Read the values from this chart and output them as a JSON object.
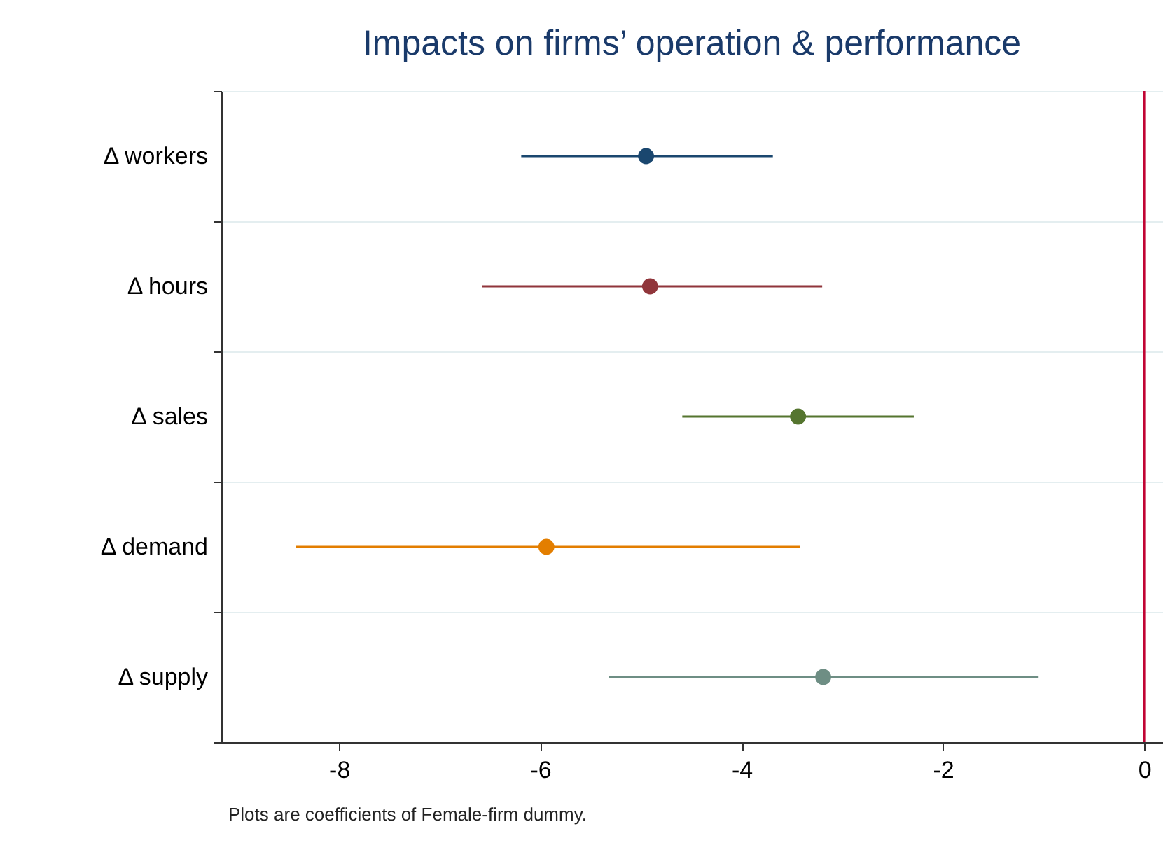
{
  "chart_data": {
    "type": "scatter",
    "title": "Impacts on firms’ operation & performance",
    "categories": [
      "Δ workers",
      "Δ hours",
      "Δ sales",
      "Δ demand",
      "Δ supply"
    ],
    "values": [
      -4.95,
      -4.91,
      -3.44,
      -5.94,
      -3.19
    ],
    "errors": [
      [
        -6.19,
        -3.69
      ],
      [
        -6.58,
        -3.2
      ],
      [
        -4.59,
        -2.29
      ],
      [
        -8.43,
        -3.42
      ],
      [
        -5.32,
        -1.05
      ]
    ],
    "colors": [
      "#1a476f",
      "#90353b",
      "#55752f",
      "#e37e00",
      "#6e8e84"
    ],
    "orientation": "horizontal",
    "xlim": [
      -9.17,
      0.18
    ],
    "xticks": [
      -8,
      -6,
      -4,
      -2,
      0
    ],
    "ref_lines": [
      {
        "axis": "x",
        "value": 0,
        "color": "#c10534"
      }
    ],
    "grid": "y",
    "marker": "circle",
    "annotations": [
      "Plots are coefficients of Female-firm dummy."
    ]
  }
}
